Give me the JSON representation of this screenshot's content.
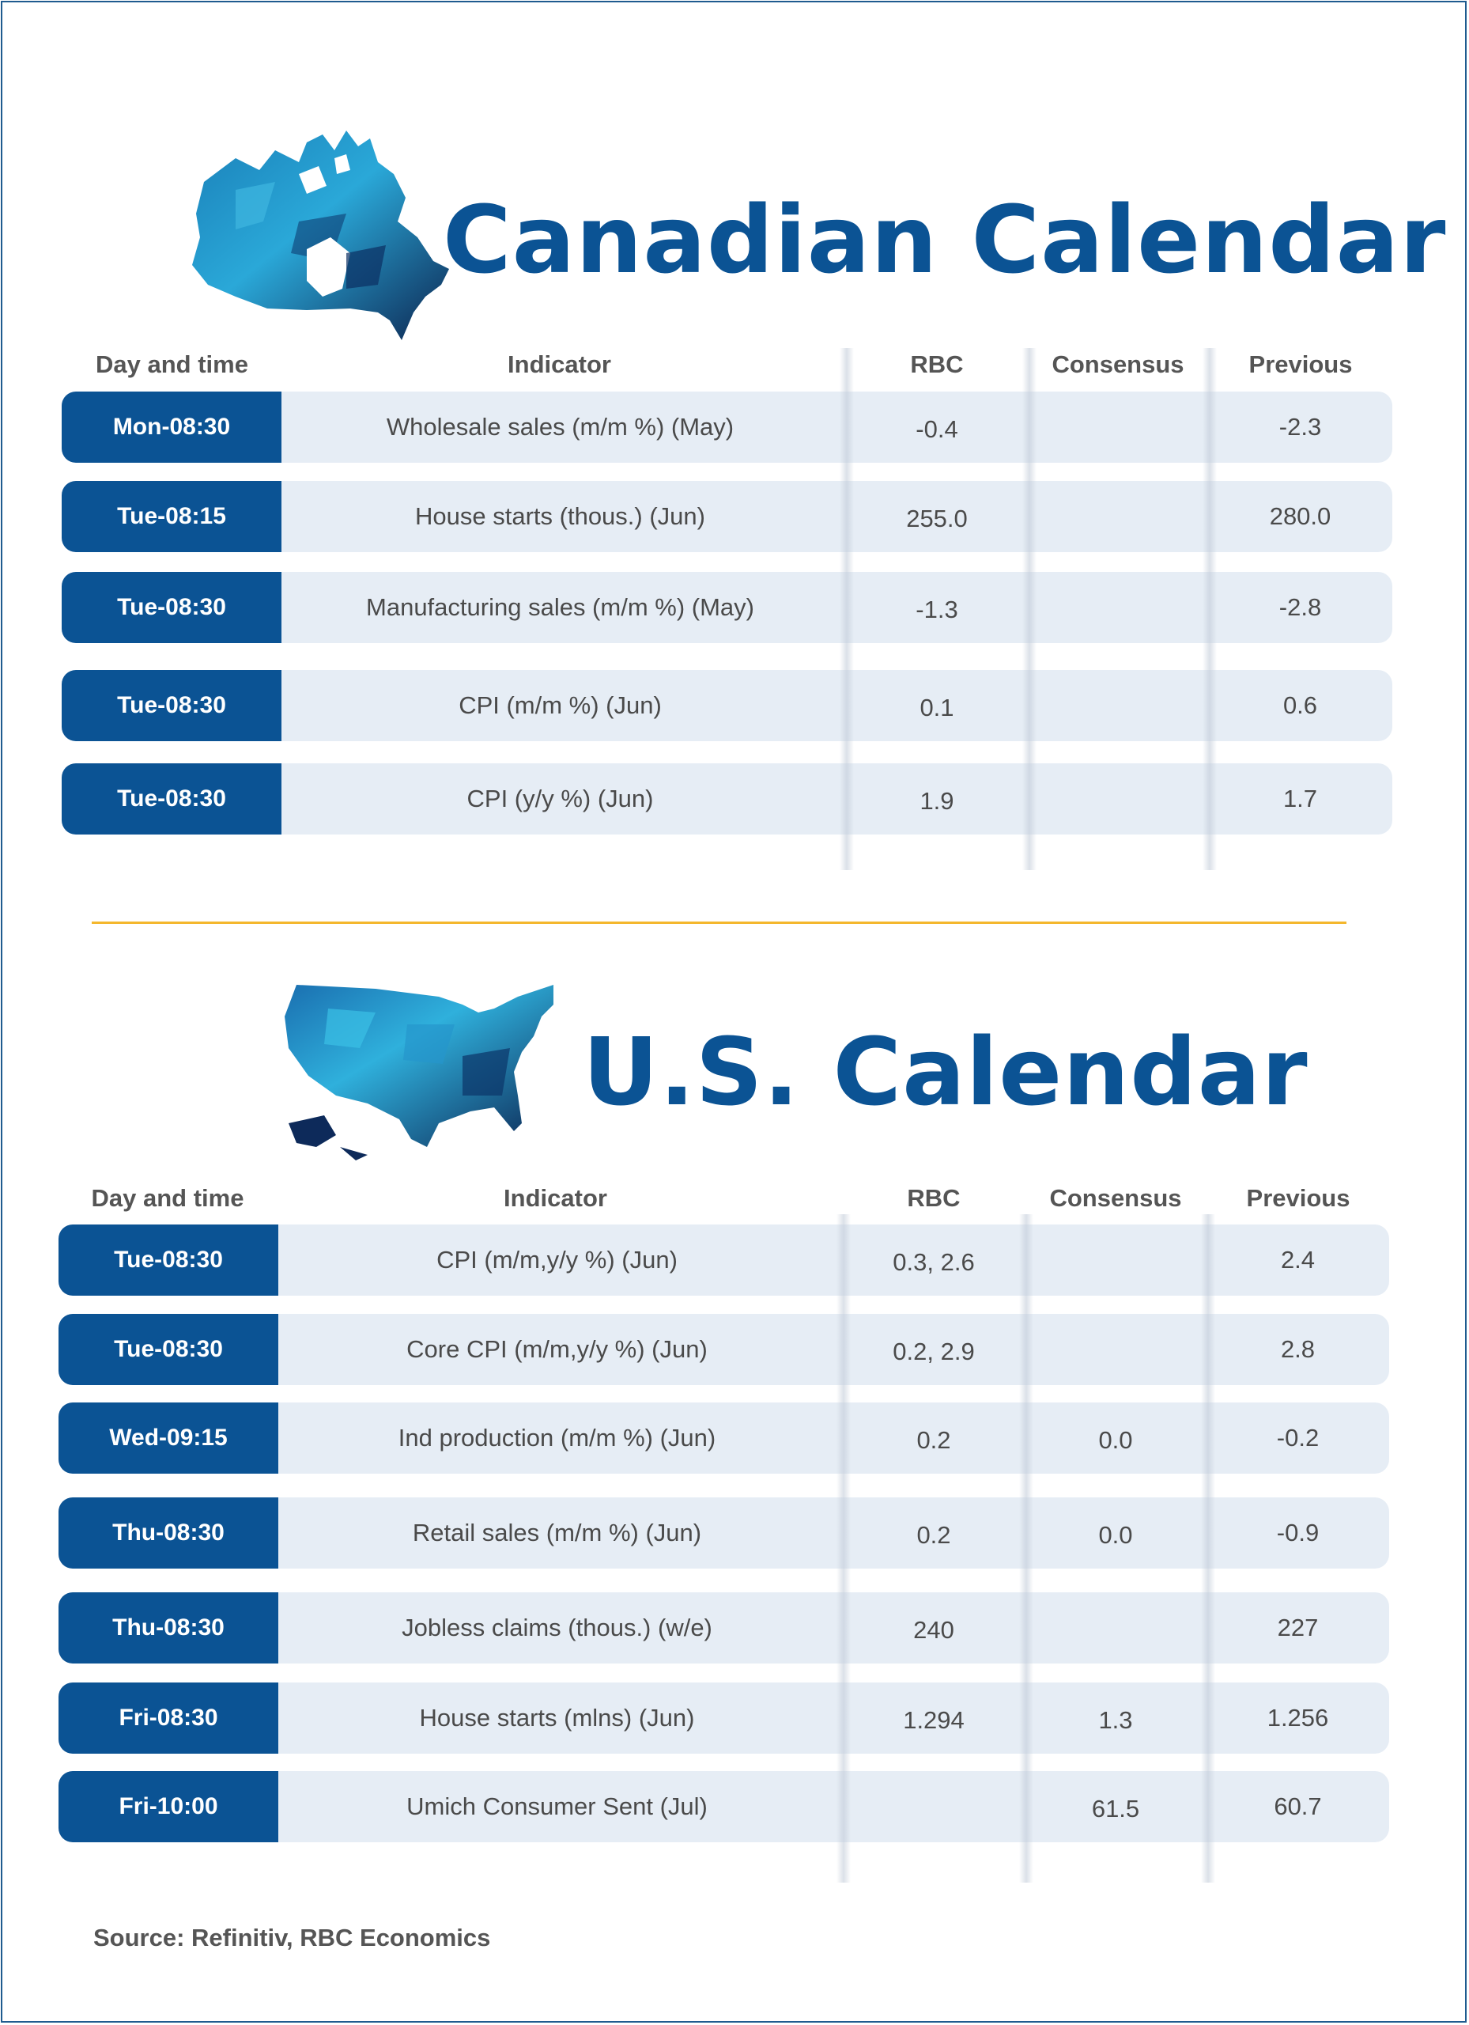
{
  "canada": {
    "title": "Canadian Calendar",
    "headers": [
      "Day and time",
      "Indicator",
      "RBC",
      "Consensus",
      "Previous"
    ],
    "rows": [
      {
        "day": "Mon-08:30",
        "indicator": "Wholesale sales (m/m %) (May)",
        "rbc": "-0.4",
        "consensus": "",
        "previous": "-2.3"
      },
      {
        "day": "Tue-08:15",
        "indicator": "House starts (thous.) (Jun)",
        "rbc": "255.0",
        "consensus": "",
        "previous": "280.0"
      },
      {
        "day": "Tue-08:30",
        "indicator": "Manufacturing sales (m/m %) (May)",
        "rbc": "-1.3",
        "consensus": "",
        "previous": "-2.8"
      },
      {
        "day": "Tue-08:30",
        "indicator": "CPI (m/m %) (Jun)",
        "rbc": "0.1",
        "consensus": "",
        "previous": "0.6"
      },
      {
        "day": "Tue-08:30",
        "indicator": "CPI (y/y %) (Jun)",
        "rbc": "1.9",
        "consensus": "",
        "previous": "1.7"
      }
    ]
  },
  "us": {
    "title": "U.S. Calendar",
    "headers": [
      "Day and time",
      "Indicator",
      "RBC",
      "Consensus",
      "Previous"
    ],
    "rows": [
      {
        "day": "Tue-08:30",
        "indicator": "CPI (m/m,y/y %) (Jun)",
        "rbc": "0.3, 2.6",
        "consensus": "",
        "previous": "2.4"
      },
      {
        "day": "Tue-08:30",
        "indicator": "Core CPI (m/m,y/y %) (Jun)",
        "rbc": "0.2, 2.9",
        "consensus": "",
        "previous": "2.8"
      },
      {
        "day": "Wed-09:15",
        "indicator": "Ind production (m/m %) (Jun)",
        "rbc": "0.2",
        "consensus": "0.0",
        "previous": "-0.2"
      },
      {
        "day": "Thu-08:30",
        "indicator": "Retail sales (m/m %) (Jun)",
        "rbc": "0.2",
        "consensus": "0.0",
        "previous": "-0.9"
      },
      {
        "day": "Thu-08:30",
        "indicator": "Jobless claims (thous.) (w/e)",
        "rbc": "240",
        "consensus": "",
        "previous": "227"
      },
      {
        "day": "Fri-08:30",
        "indicator": "House starts (mlns) (Jun)",
        "rbc": "1.294",
        "consensus": "1.3",
        "previous": "1.256"
      },
      {
        "day": "Fri-10:00",
        "indicator": "Umich Consumer Sent (Jul)",
        "rbc": "",
        "consensus": "61.5",
        "previous": "60.7"
      }
    ]
  },
  "footer": {
    "source": "Source: Refinitiv,  RBC Economics"
  },
  "colors": {
    "brand_blue": "#0b5394",
    "row_bg": "#e6edf5",
    "divider": "#f4b72d"
  }
}
